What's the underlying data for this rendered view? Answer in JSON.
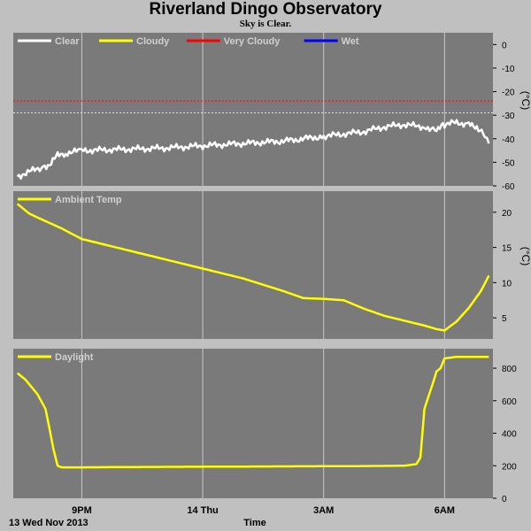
{
  "title": "Riverland Dingo Observatory",
  "subtitle": "Sky is Clear.",
  "colors": {
    "panel": "#7a7a7a",
    "grid": "#c8c8c8",
    "clear": "#ffffff",
    "cloudy": "#ffff00",
    "very_cloudy": "#ff0000",
    "wet": "#0000ff"
  },
  "x_axis": {
    "label": "Time",
    "start_label": "13 Wed Nov 2013",
    "ticks": [
      {
        "label": "9PM",
        "t": 21
      },
      {
        "label": "14 Thu",
        "t": 24
      },
      {
        "label": "3AM",
        "t": 27
      },
      {
        "label": "6AM",
        "t": 30
      }
    ],
    "range": [
      19.3,
      31.2
    ]
  },
  "chart_data": [
    {
      "type": "line",
      "name": "sky",
      "legend": [
        "Clear",
        "Cloudy",
        "Very Cloudy",
        "Wet"
      ],
      "unit": "(°C)",
      "ylim": [
        -60,
        5
      ],
      "yticks": [
        0,
        -10,
        -20,
        -30,
        -40,
        -50,
        -60
      ],
      "thresholds": [
        {
          "name": "Very Cloudy",
          "value": -24
        },
        {
          "name": "Cloudy",
          "value": -29
        }
      ],
      "series": [
        {
          "name": "Clear",
          "x": [
            19.4,
            19.7,
            20.0,
            20.2,
            20.4,
            20.6,
            21,
            22,
            23,
            24,
            25,
            26,
            27,
            27.5,
            28,
            28.5,
            29,
            29.5,
            29.8,
            30,
            30.3,
            30.6,
            30.8,
            31.0,
            31.1
          ],
          "y": [
            -56,
            -54,
            -52,
            -51,
            -47,
            -46,
            -45,
            -44.5,
            -44,
            -43,
            -42,
            -41,
            -39,
            -38,
            -37,
            -35,
            -34,
            -35,
            -36,
            -34,
            -33,
            -34,
            -35,
            -38,
            -42
          ]
        }
      ]
    },
    {
      "type": "line",
      "name": "ambient",
      "legend": [
        "Ambient Temp"
      ],
      "unit": "(°C)",
      "ylim": [
        2,
        23
      ],
      "yticks": [
        20,
        15,
        10,
        5
      ],
      "series": [
        {
          "name": "Ambient Temp",
          "x": [
            19.4,
            19.7,
            20,
            20.5,
            21,
            22,
            23,
            24,
            25,
            26,
            26.5,
            27,
            27.5,
            28,
            28.5,
            29,
            29.5,
            29.8,
            30,
            30.3,
            30.6,
            30.9,
            31.1
          ],
          "y": [
            21.2,
            19.8,
            19,
            17.7,
            16.2,
            14.8,
            13.4,
            12,
            10.6,
            8.8,
            7.8,
            7.7,
            7.5,
            6.3,
            5.3,
            4.6,
            3.9,
            3.4,
            3.2,
            4.5,
            6.4,
            8.8,
            11
          ]
        }
      ]
    },
    {
      "type": "line",
      "name": "daylight",
      "legend": [
        "Daylight"
      ],
      "unit": "",
      "ylim": [
        0,
        920
      ],
      "yticks": [
        800,
        600,
        400,
        200,
        0
      ],
      "series": [
        {
          "name": "Daylight",
          "x": [
            19.4,
            19.6,
            19.9,
            20.1,
            20.3,
            20.4,
            20.5,
            21,
            22,
            23,
            24,
            25,
            26,
            27,
            28,
            29,
            29.3,
            29.4,
            29.5,
            29.7,
            29.8,
            29.9,
            30.0,
            30.3,
            31.1
          ],
          "y": [
            770,
            730,
            640,
            550,
            300,
            200,
            190,
            190,
            192,
            193,
            194,
            195,
            196,
            197,
            198,
            200,
            210,
            250,
            550,
            700,
            780,
            800,
            860,
            870,
            870
          ]
        }
      ]
    }
  ]
}
